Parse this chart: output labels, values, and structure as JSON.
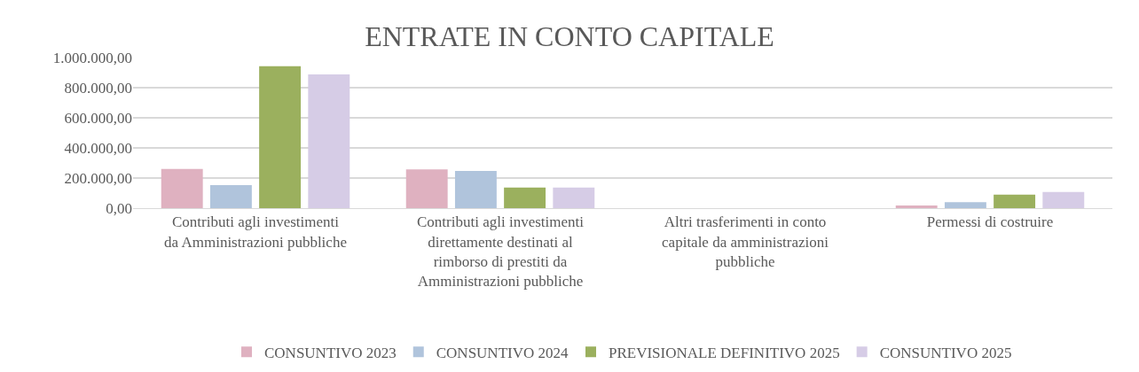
{
  "chart_data": {
    "type": "bar",
    "title": "ENTRATE IN CONTO CAPITALE",
    "categories": [
      "Contributi agli investimenti da Amministrazioni pubbliche",
      "Contributi agli investimenti direttamente destinati al rimborso di prestiti da Amministrazioni pubbliche",
      "Altri trasferimenti in conto capitale da amministrazioni pubbliche",
      "Permessi di costruire"
    ],
    "series": [
      {
        "name": "CONSUNTIVO 2023",
        "color": "#dfb1c0",
        "values": [
          260000,
          258000,
          0,
          18000
        ]
      },
      {
        "name": "CONSUNTIVO 2024",
        "color": "#b0c4dc",
        "values": [
          153000,
          247000,
          0,
          40000
        ]
      },
      {
        "name": "PREVISIONALE DEFINITIVO 2025",
        "color": "#9bb05e",
        "values": [
          942000,
          137000,
          0,
          89000
        ]
      },
      {
        "name": "CONSUNTIVO 2025",
        "color": "#d6cce6",
        "values": [
          888000,
          137000,
          0,
          107000
        ]
      }
    ],
    "ylim": [
      0,
      1000000
    ],
    "yticks": [
      {
        "value": 0,
        "label": "0,00"
      },
      {
        "value": 200000,
        "label": "200.000,00"
      },
      {
        "value": 400000,
        "label": "400.000,00"
      },
      {
        "value": 600000,
        "label": "600.000,00"
      },
      {
        "value": 800000,
        "label": "800.000,00"
      },
      {
        "value": 1000000,
        "label": "1.000.000,00"
      }
    ],
    "grid": "y",
    "legend": "bottom"
  }
}
